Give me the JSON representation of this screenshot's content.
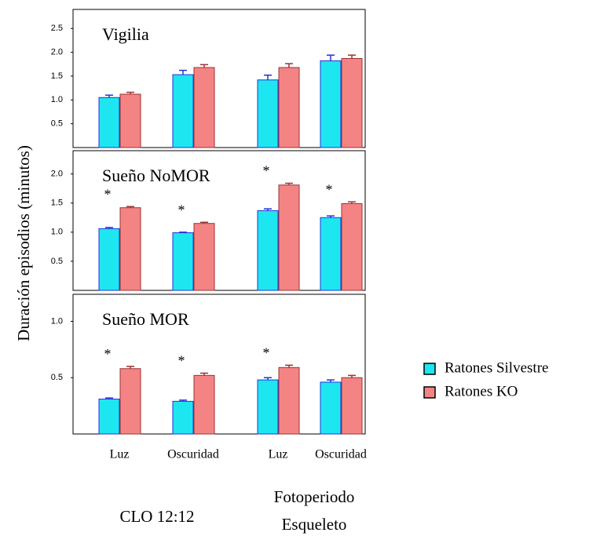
{
  "ylabel": "Duración episodios (minutos)",
  "group_labels": [
    {
      "lines": [
        "CLO 12:12"
      ]
    },
    {
      "lines": [
        "Fotoperiodo",
        "Esqueleto"
      ]
    }
  ],
  "chart_data": [
    {
      "type": "bar",
      "title": "Vigilia",
      "ylim": [
        0,
        2.9
      ],
      "yticks": [
        0.5,
        {
          "value": 1,
          "label": "1.0"
        },
        1.5,
        {
          "value": 2,
          "label": "2.0"
        },
        2.5
      ],
      "series": [
        {
          "name": "Ratones Silvestre",
          "color": "#1ee6f0",
          "values": [
            1.05,
            1.53,
            1.42,
            1.82
          ],
          "errors": [
            0.05,
            0.09,
            0.1,
            0.12
          ]
        },
        {
          "name": "Ratones KO",
          "color": "#f48484",
          "values": [
            1.12,
            1.68,
            1.68,
            1.87
          ],
          "errors": [
            0.04,
            0.06,
            0.08,
            0.07
          ]
        }
      ]
    },
    {
      "type": "bar",
      "title": "Sueño NoMOR",
      "ylim": [
        0,
        2.4
      ],
      "yticks": [
        0.5,
        {
          "value": 1,
          "label": "1.0"
        },
        1.5,
        {
          "value": 2,
          "label": "2.0"
        }
      ],
      "annotation": "*",
      "significant": [
        true,
        true,
        true,
        true
      ],
      "series": [
        {
          "name": "Ratones Silvestre",
          "color": "#1ee6f0",
          "values": [
            1.06,
            0.99,
            1.37,
            1.25
          ],
          "errors": [
            0.02,
            0.01,
            0.03,
            0.03
          ]
        },
        {
          "name": "Ratones KO",
          "color": "#f48484",
          "values": [
            1.42,
            1.15,
            1.81,
            1.49
          ],
          "errors": [
            0.02,
            0.02,
            0.03,
            0.03
          ]
        }
      ]
    },
    {
      "type": "bar",
      "title": "Sueño MOR",
      "ylim": [
        0,
        1.24
      ],
      "yticks": [
        0.5,
        {
          "value": 1,
          "label": "1.0"
        }
      ],
      "annotation": "*",
      "significant": [
        true,
        true,
        true,
        false
      ],
      "categories": [
        "Luz",
        "Oscuridad",
        "Luz",
        "Oscuridad"
      ],
      "series": [
        {
          "name": "Ratones Silvestre",
          "color": "#1ee6f0",
          "values": [
            0.31,
            0.29,
            0.48,
            0.46
          ],
          "errors": [
            0.01,
            0.01,
            0.02,
            0.02
          ]
        },
        {
          "name": "Ratones KO",
          "color": "#f48484",
          "values": [
            0.58,
            0.52,
            0.59,
            0.5
          ],
          "errors": [
            0.02,
            0.02,
            0.02,
            0.02
          ]
        }
      ]
    }
  ]
}
